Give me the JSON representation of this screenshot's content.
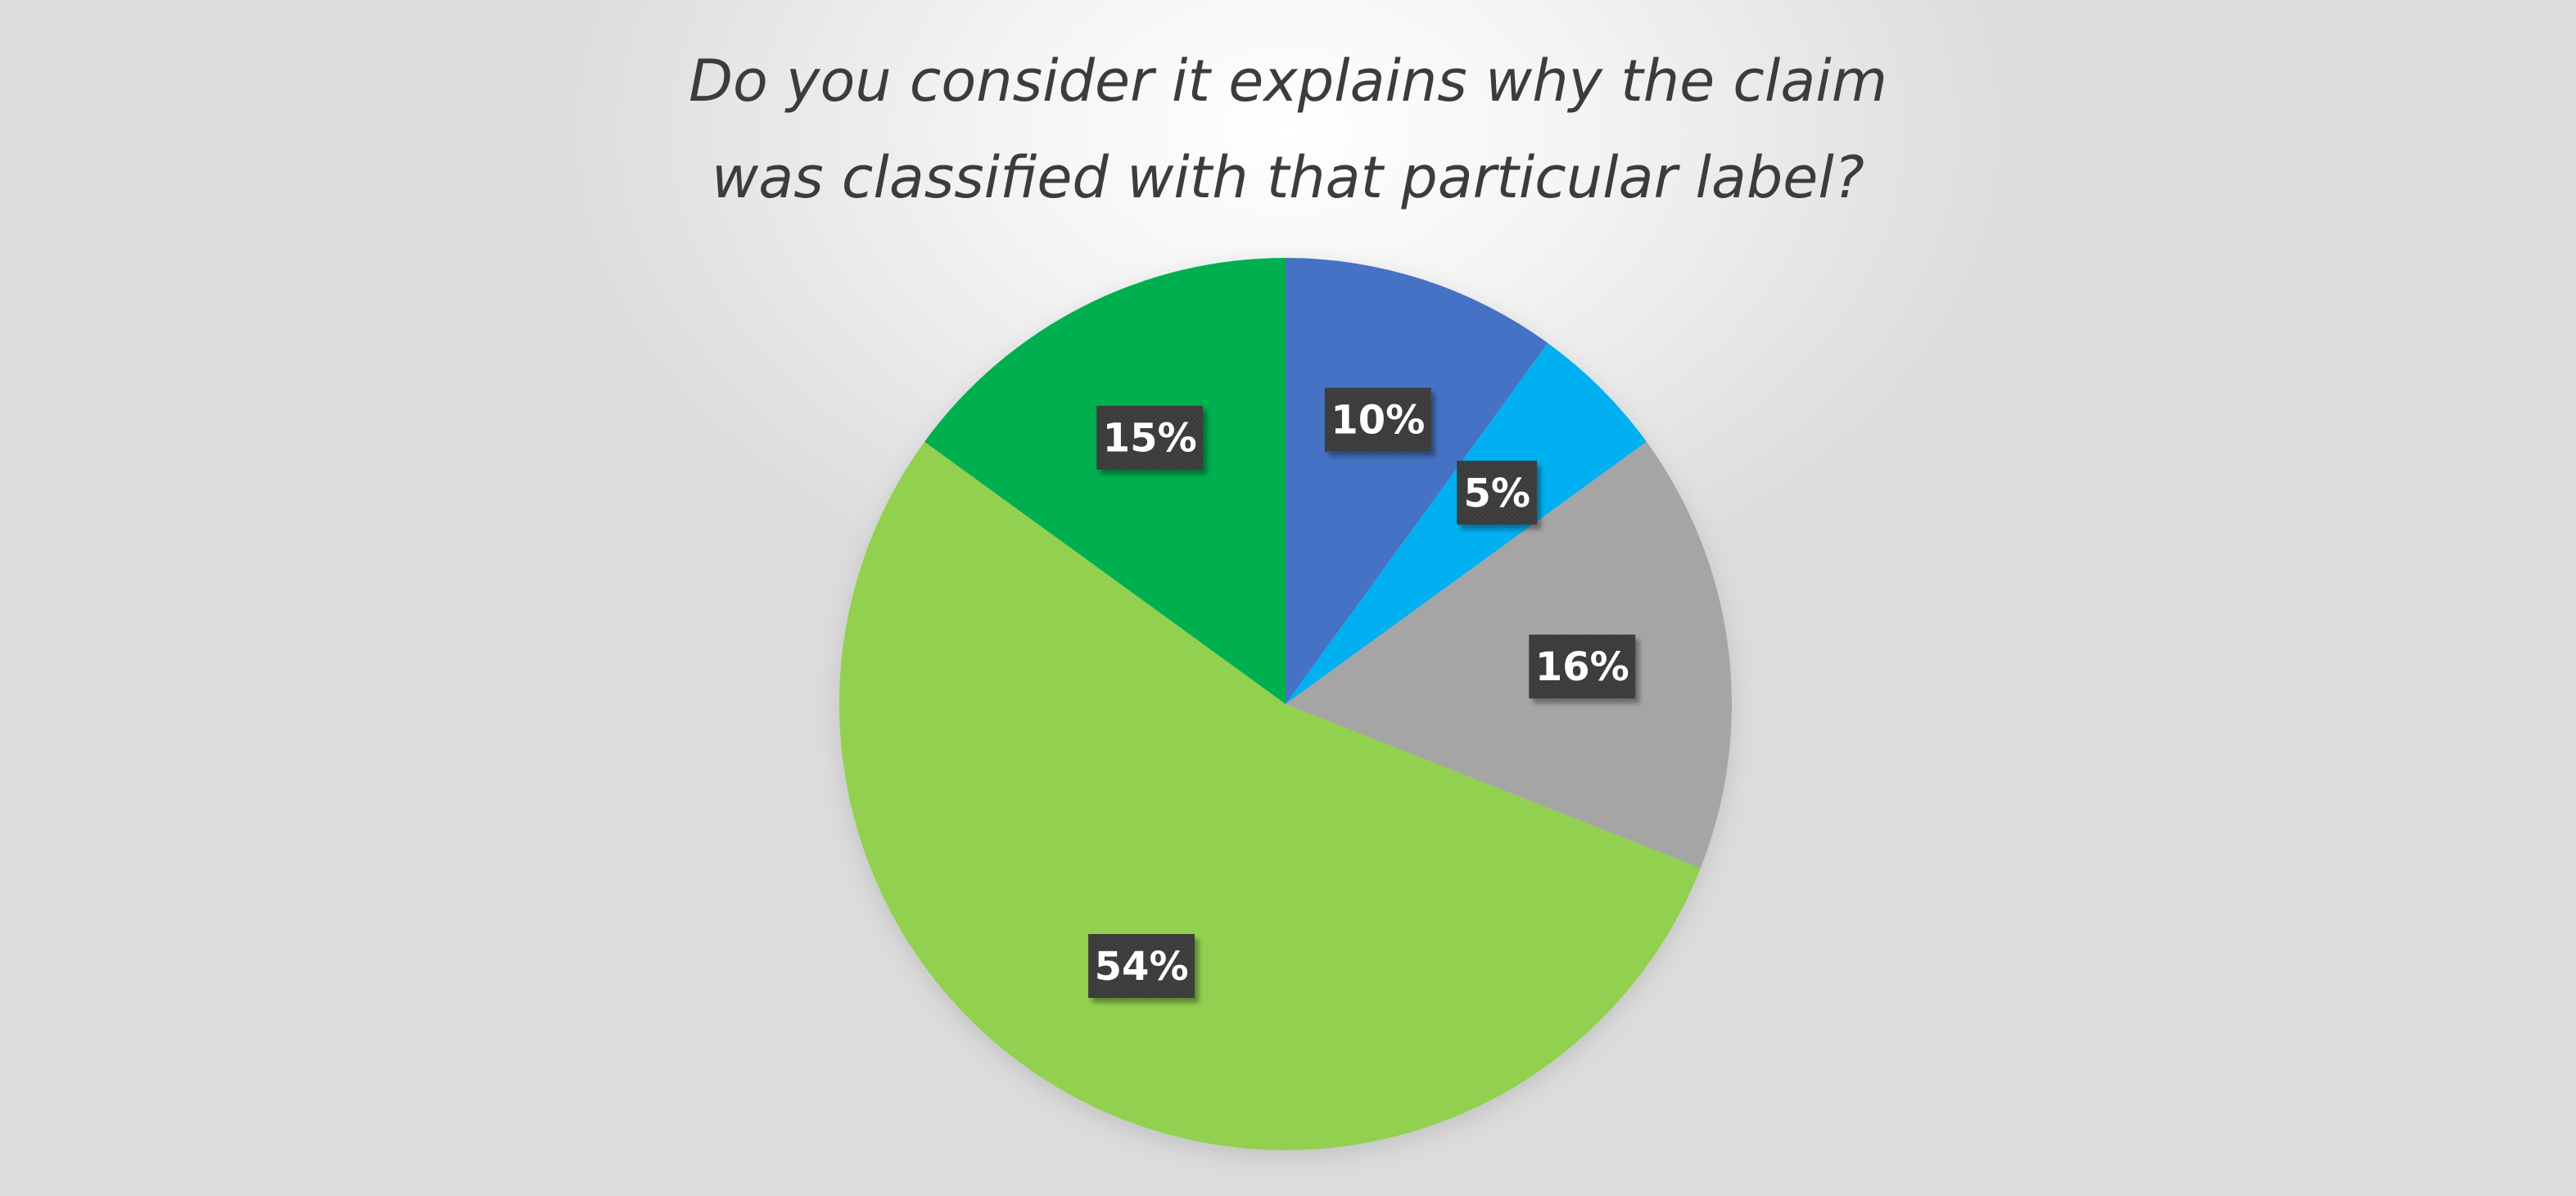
{
  "chart_data": {
    "type": "pie",
    "title_lines": [
      "Do you consider it explains why the claim",
      "was classified with that particular label?"
    ],
    "slices": [
      {
        "value": 10,
        "label": "10%",
        "color": "#4472C4"
      },
      {
        "value": 5,
        "label": "5%",
        "color": "#00B0F0"
      },
      {
        "value": 16,
        "label": "16%",
        "color": "#A5A5A5"
      },
      {
        "value": 54,
        "label": "54%",
        "color": "#92D050"
      },
      {
        "value": 15,
        "label": "15%",
        "color": "#00B050"
      }
    ],
    "start_angle": "12 o'clock",
    "direction": "clockwise",
    "legend": "none",
    "data_label_style": {
      "background": "#3a3a3a",
      "text_color": "#ffffff"
    }
  }
}
